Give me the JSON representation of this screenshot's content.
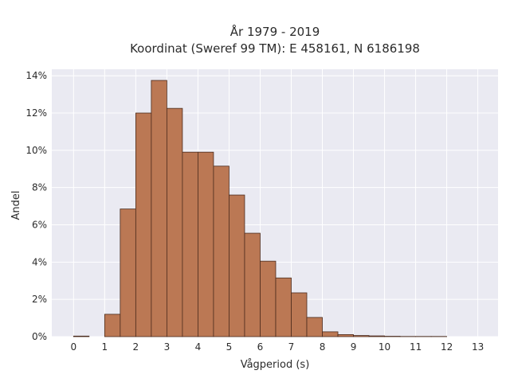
{
  "chart_data": {
    "type": "bar",
    "title_lines": [
      "År 1979 - 2019",
      "Koordinat (Sweref 99 TM): E 458161, N 6186198"
    ],
    "xlabel": "Vågperiod (s)",
    "ylabel": "Andel",
    "xlim": [
      -0.7,
      13.65
    ],
    "ylim": [
      0,
      0.1435
    ],
    "x_ticks": [
      0,
      1,
      2,
      3,
      4,
      5,
      6,
      7,
      8,
      9,
      10,
      11,
      12,
      13
    ],
    "x_tick_labels": [
      "0",
      "1",
      "2",
      "3",
      "4",
      "5",
      "6",
      "7",
      "8",
      "9",
      "10",
      "11",
      "12",
      "13"
    ],
    "y_ticks": [
      0,
      0.02,
      0.04,
      0.06,
      0.08,
      0.1,
      0.12,
      0.14
    ],
    "y_tick_labels": [
      "0%",
      "2%",
      "4%",
      "6%",
      "8%",
      "10%",
      "12%",
      "14%"
    ],
    "grid": true,
    "bin_width": 0.5,
    "bins": [
      {
        "x0": 0.0,
        "value": 0.0003
      },
      {
        "x0": 0.5,
        "value": 0.0
      },
      {
        "x0": 1.0,
        "value": 0.012
      },
      {
        "x0": 1.5,
        "value": 0.0685
      },
      {
        "x0": 2.0,
        "value": 0.12
      },
      {
        "x0": 2.5,
        "value": 0.1375
      },
      {
        "x0": 3.0,
        "value": 0.1225
      },
      {
        "x0": 3.5,
        "value": 0.099
      },
      {
        "x0": 4.0,
        "value": 0.099
      },
      {
        "x0": 4.5,
        "value": 0.0915
      },
      {
        "x0": 5.0,
        "value": 0.076
      },
      {
        "x0": 5.5,
        "value": 0.0555
      },
      {
        "x0": 6.0,
        "value": 0.0405
      },
      {
        "x0": 6.5,
        "value": 0.0315
      },
      {
        "x0": 7.0,
        "value": 0.0235
      },
      {
        "x0": 7.5,
        "value": 0.0103
      },
      {
        "x0": 8.0,
        "value": 0.0026
      },
      {
        "x0": 8.5,
        "value": 0.0011
      },
      {
        "x0": 9.0,
        "value": 0.0006
      },
      {
        "x0": 9.5,
        "value": 0.0004
      },
      {
        "x0": 10.0,
        "value": 0.0002
      },
      {
        "x0": 10.5,
        "value": 0.0001
      },
      {
        "x0": 11.0,
        "value": 0.0001
      },
      {
        "x0": 11.5,
        "value": 0.0001
      }
    ],
    "colors": {
      "bar_fill": "#bb7854",
      "bar_edge": "#4a2a1c",
      "plot_background": "#eaeaf2",
      "grid": "#ffffff"
    }
  }
}
